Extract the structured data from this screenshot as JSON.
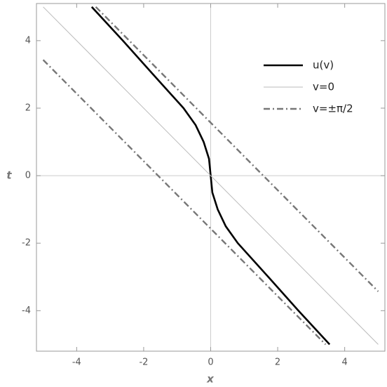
{
  "chart_data": {
    "type": "line",
    "xlabel": "x",
    "ylabel": "t",
    "xlim": [
      -5.2,
      5.2
    ],
    "ylim": [
      -5.2,
      5.1
    ],
    "xticks": [
      -4,
      -2,
      0,
      2,
      4
    ],
    "yticks": [
      -4,
      -2,
      0,
      2,
      4
    ],
    "legend": "upper right",
    "series": [
      {
        "name": "u(v)",
        "color": "#000000",
        "style": "solid",
        "x": [
          -3.55,
          -2.62,
          -1.72,
          -0.81,
          -0.45,
          -0.21,
          -0.05,
          0,
          0.05,
          0.21,
          0.45,
          0.81,
          1.72,
          2.62,
          3.55
        ],
        "values": [
          5,
          4,
          3,
          2,
          1.5,
          1,
          0.5,
          0,
          -0.5,
          -1,
          -1.5,
          -2,
          -3,
          -4,
          -5
        ]
      },
      {
        "name": "v=0",
        "color": "#bbbbbb",
        "style": "thin",
        "x": [
          -5,
          5
        ],
        "values": [
          5,
          -5
        ]
      },
      {
        "name": "v=±π/2",
        "color": "#777777",
        "style": "dashdot",
        "x": [
          -3.43,
          5
        ],
        "values": [
          5,
          -3.43
        ]
      },
      {
        "name": null,
        "color": "#777777",
        "style": "dashdot",
        "x": [
          -5,
          3.43
        ],
        "values": [
          3.43,
          -5
        ]
      }
    ]
  }
}
